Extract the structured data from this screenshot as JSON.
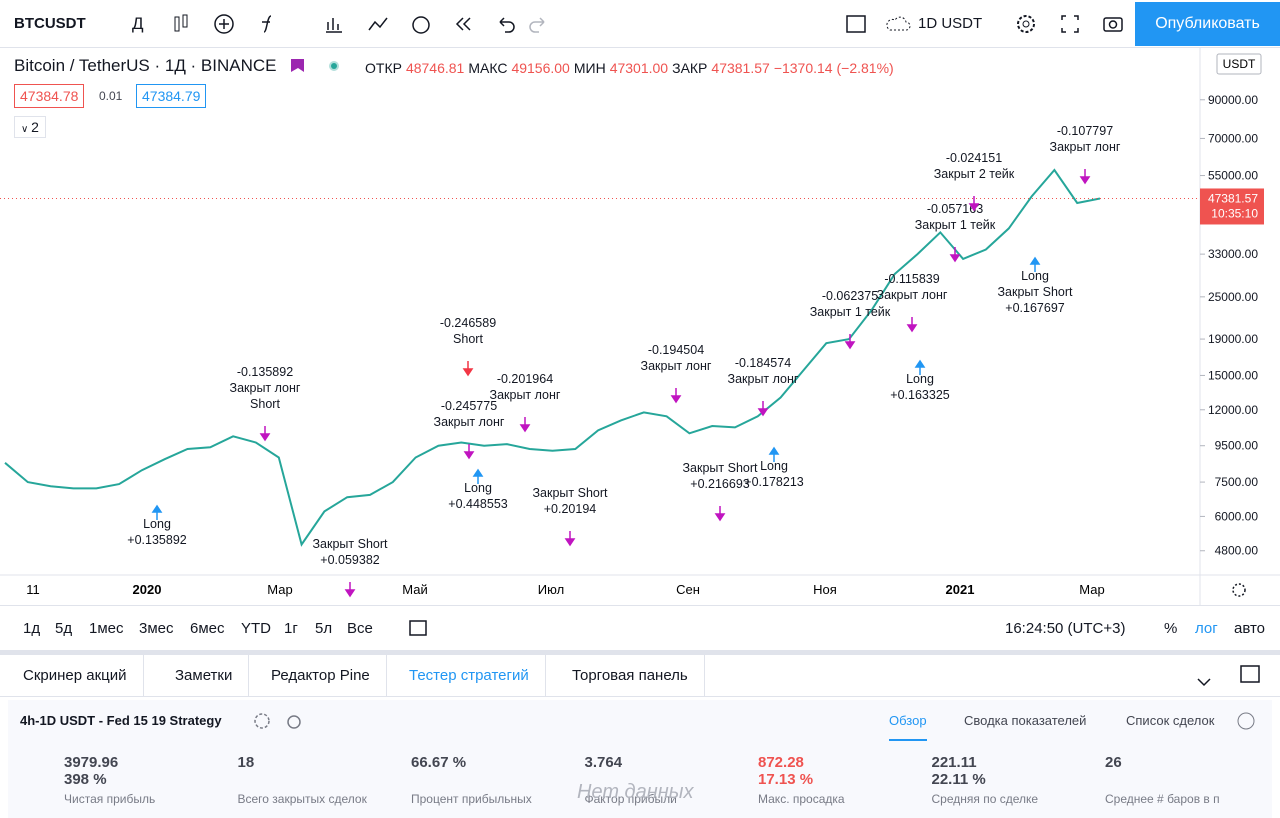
{
  "toolbar": {
    "symbol": "BTCUSDT",
    "interval": "Д",
    "currency": "1D USDT",
    "publish": "Опубликовать"
  },
  "header": {
    "title": "Bitcoin / TetherUS · 1Д · BINANCE",
    "ohlc": [
      {
        "label": "ОТКР",
        "value": "48746.81"
      },
      {
        "label": "МАКС",
        "value": "49156.00"
      },
      {
        "label": "МИН",
        "value": "47301.00"
      },
      {
        "label": "ЗАКР",
        "value": "47381.57"
      }
    ],
    "change": "−1370.14 (−2.81%)",
    "bid": "47384.78",
    "spread": "0.01",
    "ask": "47384.79",
    "indicators": "2"
  },
  "price_chart": {
    "log_scale": true,
    "ylim": [
      4100,
      126000
    ],
    "axis_currency": "USDT",
    "yticks": [
      {
        "value": 90000,
        "label": "90000.00"
      },
      {
        "value": 70000,
        "label": "70000.00"
      },
      {
        "value": 55000,
        "label": "55000.00"
      },
      {
        "value": 33000,
        "label": "33000.00"
      },
      {
        "value": 25000,
        "label": "25000.00"
      },
      {
        "value": 19000,
        "label": "19000.00"
      },
      {
        "value": 15000,
        "label": "15000.00"
      },
      {
        "value": 12000,
        "label": "12000.00"
      },
      {
        "value": 9500,
        "label": "9500.00"
      },
      {
        "value": 7500,
        "label": "7500.00"
      },
      {
        "value": 6000,
        "label": "6000.00"
      },
      {
        "value": 4800,
        "label": "4800.00"
      }
    ],
    "current_price": 47381.57,
    "countdown": "10:35:10",
    "color": "#26a69a",
    "x_labels": [
      "11",
      "2020",
      "Мар",
      "Май",
      "Июл",
      "Сен",
      "Ноя",
      "2021",
      "Мар"
    ],
    "values": [
      8500,
      7500,
      7300,
      7200,
      7200,
      7400,
      8100,
      8700,
      9300,
      9400,
      10100,
      9700,
      8800,
      5000,
      6200,
      6800,
      6900,
      7500,
      8800,
      9500,
      9700,
      9500,
      9600,
      9300,
      9200,
      9300,
      10500,
      11200,
      11800,
      11500,
      10300,
      10800,
      10700,
      11500,
      13000,
      15500,
      18500,
      19000,
      23000,
      29000,
      33000,
      38000,
      32000,
      34000,
      39000,
      48000,
      57000,
      46000,
      47381.57
    ],
    "annotations": [
      [
        "Long",
        "+0.135892"
      ],
      [
        "-0.135892",
        "Закрыт лонг",
        "Short"
      ],
      [
        "Закрыт Short",
        "+0.059382"
      ],
      [
        "-0.246589",
        "Short"
      ],
      [
        "-0.245775",
        "Закрыт лонг"
      ],
      [
        "Long",
        "+0.448553"
      ],
      [
        "-0.201964",
        "Закрыт лонг"
      ],
      [
        "Закрыт Short",
        "+0.20194"
      ],
      [
        "-0.194504",
        "Закрыт лонг"
      ],
      [
        "Закрыт Short",
        "+0.216693"
      ],
      [
        "-0.184574",
        "Закрыт лонг"
      ],
      [
        "Long",
        "+0.178213"
      ],
      [
        "-0.062375",
        "Закрыт 1 тейк"
      ],
      [
        "-0.115839",
        "Закрыт лонг"
      ],
      [
        "Long",
        "+0.163325"
      ],
      [
        "-0.057163",
        "Закрыт 1 тейк"
      ],
      [
        "-0.024151",
        "Закрыт 2 тейк"
      ],
      [
        "Long",
        "Закрыт Short",
        "+0.167697"
      ],
      [
        "-0.107797",
        "Закрыт лонг"
      ]
    ]
  },
  "range_bar": {
    "ranges": [
      "1д",
      "5д",
      "1мес",
      "3мес",
      "6мес",
      "YTD",
      "1г",
      "5л",
      "Все"
    ],
    "time": "16:24:50 (UTC+3)",
    "percent": "%",
    "log": "лог",
    "auto": "авто"
  },
  "panel": {
    "tabs": [
      "Скринер акций",
      "Заметки",
      "Редактор Pine",
      "Тестер стратегий",
      "Торговая панель"
    ],
    "strategy": "4h-1D USDT - Fed 15 19 Strategy",
    "subtabs": [
      "Обзор",
      "Сводка показателей",
      "Список сделок"
    ],
    "metrics": [
      {
        "value": "3979.96",
        "sub": "398 %",
        "label": "Чистая прибыль"
      },
      {
        "value": "18",
        "label": "Всего закрытых сделок"
      },
      {
        "value": "66.67 %",
        "label": "Процент прибыльных"
      },
      {
        "value": "3.764",
        "label": "Фактор прибыли"
      },
      {
        "value": "872.28",
        "sub": "17.13 %",
        "label": "Макс. просадка"
      },
      {
        "value": "221.11",
        "sub": "22.11 %",
        "label": "Средняя по сделке"
      },
      {
        "value": "26",
        "label": "Среднее # баров в п"
      }
    ],
    "no_data": "Нет данных"
  }
}
